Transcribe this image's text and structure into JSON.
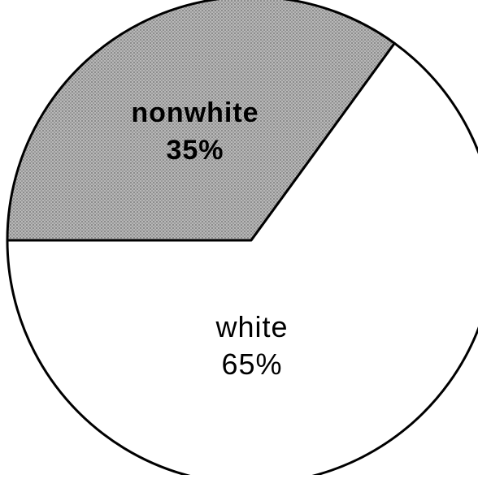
{
  "chart_data": {
    "type": "pie",
    "title": "",
    "slices": [
      {
        "label": "nonwhite",
        "value": 35,
        "value_label": "35%",
        "fill": "#a6a6a6"
      },
      {
        "label": "white",
        "value": 65,
        "value_label": "65%",
        "fill": "#ffffff"
      }
    ],
    "start_angle_deg": 180,
    "direction": "clockwise",
    "legend": "none",
    "colors": {
      "outline": "#000000",
      "label_text": "#000000"
    }
  }
}
